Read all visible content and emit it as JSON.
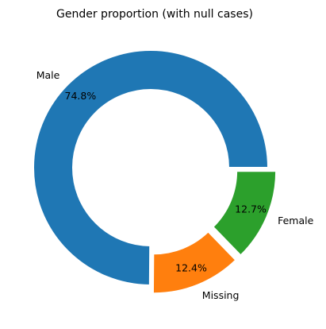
{
  "chart_data": {
    "type": "pie",
    "title": "Gender proportion (with null cases)",
    "slices": [
      {
        "name": "Male",
        "value": 74.8,
        "pct_label": "74.8%",
        "color": "#1f77b4",
        "exploded": false
      },
      {
        "name": "Missing",
        "value": 12.4,
        "pct_label": "12.4%",
        "color": "#ff7f0e",
        "exploded": true
      },
      {
        "name": "Female",
        "value": 12.7,
        "pct_label": "12.7%",
        "color": "#2ca02c",
        "exploded": true
      }
    ],
    "start_angle_deg": 0,
    "direction": "counterclockwise",
    "donut": true,
    "legend": "none",
    "grid": false
  }
}
